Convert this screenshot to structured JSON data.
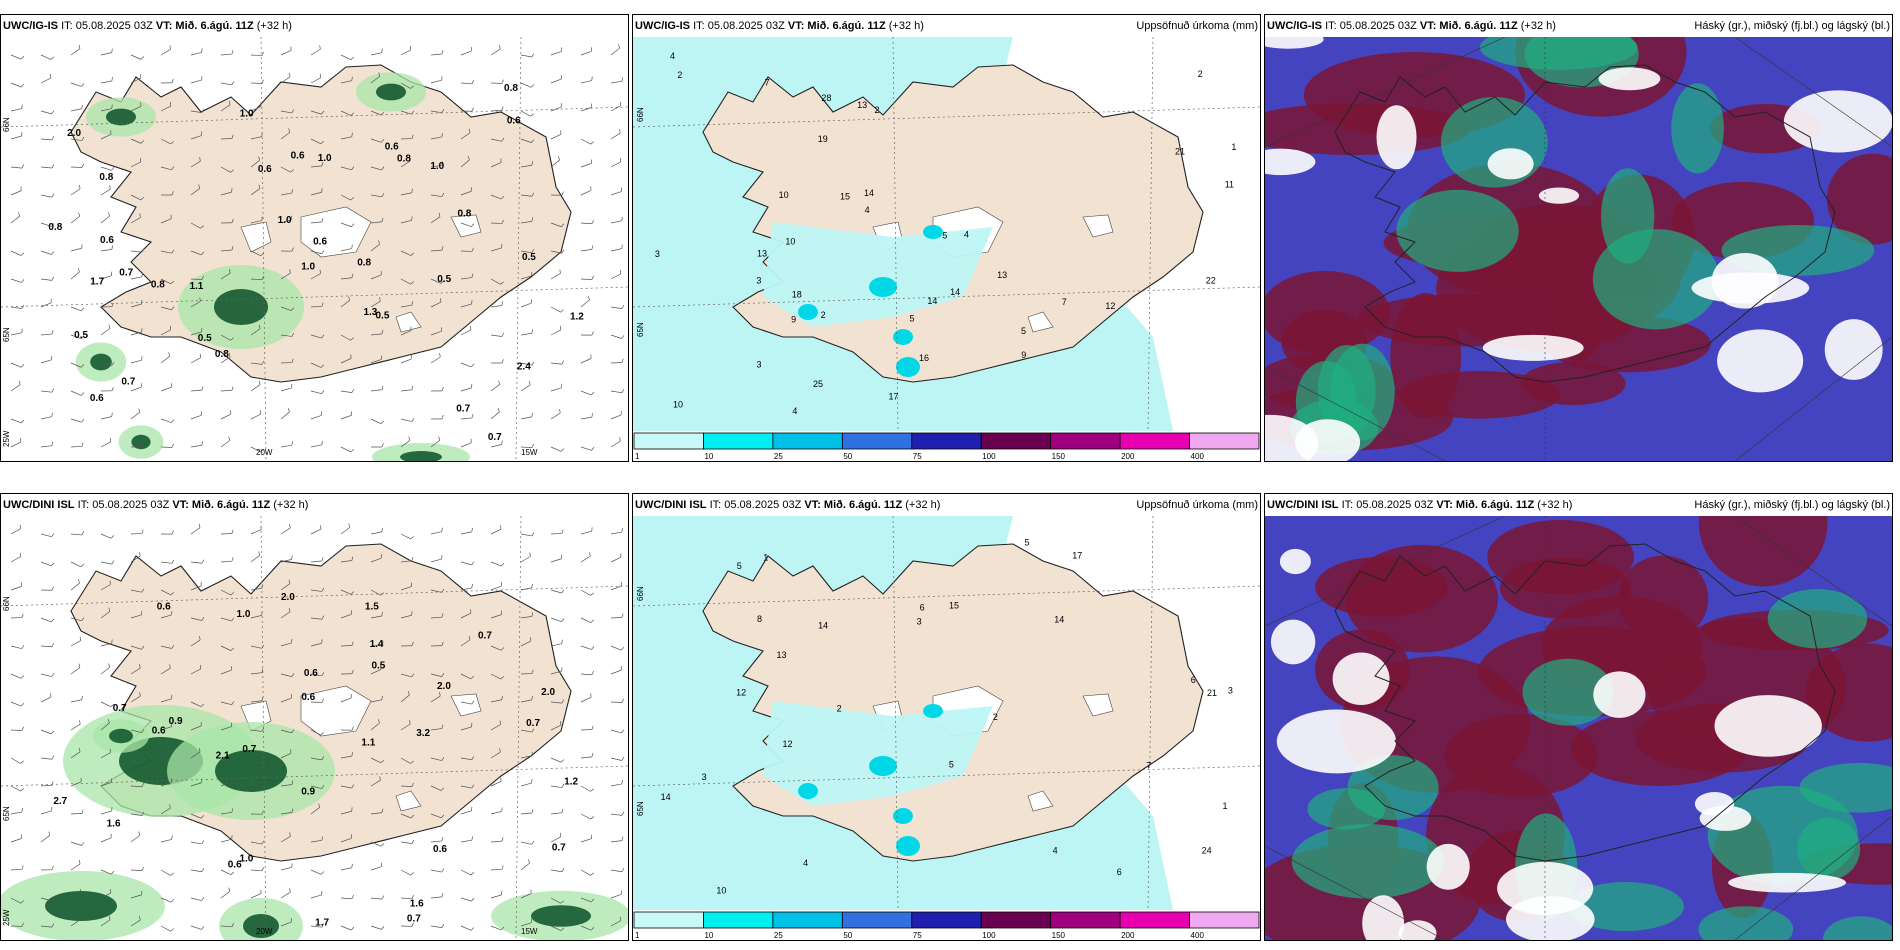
{
  "rows": [
    {
      "wind": {
        "model": "UWC/IG-IS",
        "it": "IT: 05.08.2025 03Z",
        "vt_prefix": "VT:",
        "vt": "Mið. 6.ágú. 11Z",
        "lead": "(+32 h)",
        "values": [
          "0.7",
          "0.7",
          "1.3",
          "2.0",
          "2.4",
          "0.8",
          "0.7",
          "1.1",
          "1.0",
          "0.6",
          "0.8",
          "0.7",
          "0.8",
          "1.0",
          "0.8",
          "0.5",
          "0.5",
          "0.6",
          "0.8",
          "0.6",
          "0.8",
          "1.0",
          "0.8",
          "1.2",
          "0.5",
          "0.6",
          "0.8",
          "1.0",
          "1.0",
          "0.6",
          "0.5",
          "1.7",
          "0.5",
          "0.6",
          "0.6"
        ]
      },
      "precip": {
        "model": "UWC/IG-IS",
        "it": "IT: 05.08.2025 03Z",
        "vt_prefix": "VT:",
        "vt": "Mið. 6.ágú. 11Z",
        "lead": "(+32 h)",
        "title": "Uppsöfnuð úrkoma (mm)",
        "values": [
          "2",
          "4",
          "3",
          "2",
          "1",
          "5",
          "2",
          "2",
          "10",
          "7",
          "9",
          "4",
          "4",
          "3",
          "14",
          "15",
          "5",
          "3",
          "19",
          "14",
          "11",
          "16",
          "25",
          "10",
          "13",
          "14",
          "18",
          "12",
          "17",
          "13",
          "13",
          "28",
          "21",
          "22",
          "5",
          "10",
          "7",
          "4",
          "9"
        ]
      },
      "cloud": {
        "model": "UWC/IG-IS",
        "it": "IT: 05.08.2025 03Z",
        "vt_prefix": "VT:",
        "vt": "Mið. 6.ágú. 11Z",
        "lead": "(+32 h)",
        "title": "Háský (gr.), miðský (fj.bl.) og lágský (bl.)"
      }
    },
    {
      "wind": {
        "model": "UWC/DINI ISL",
        "it": "IT: 05.08.2025 03Z",
        "vt_prefix": "VT:",
        "vt": "Mið. 6.ágú. 11Z",
        "lead": "(+32 h)",
        "values": [
          "0.6",
          "0.6",
          "0.7",
          "2.0",
          "2.1",
          "3.2",
          "1.4",
          "0.7",
          "0.6",
          "0.6",
          "1.2",
          "1.1",
          "0.5",
          "2.0",
          "1.0",
          "1.5",
          "0.7",
          "1.6",
          "2.7",
          "1.0",
          "0.6",
          "0.6",
          "0.9",
          "0.7",
          "1.7",
          "0.7",
          "0.7",
          "0.9",
          "1.6",
          "2.0"
        ]
      },
      "precip": {
        "model": "UWC/DINI ISL",
        "it": "IT: 05.08.2025 03Z",
        "vt_prefix": "VT:",
        "vt": "Mið. 6.ágú. 11Z",
        "lead": "(+32 h)",
        "title": "Uppsöfnuð úrkoma (mm)",
        "values": [
          "6",
          "5",
          "1",
          "3",
          "4",
          "17",
          "14",
          "2",
          "3",
          "14",
          "6",
          "5",
          "15",
          "13",
          "12",
          "10",
          "8",
          "6",
          "12",
          "14",
          "21",
          "24",
          "3",
          "5",
          "7",
          "4",
          "2",
          "1"
        ]
      },
      "cloud": {
        "model": "UWC/DINI ISL",
        "it": "IT: 05.08.2025 03Z",
        "vt_prefix": "VT:",
        "vt": "Mið. 6.ágú. 11Z",
        "lead": "(+32 h)",
        "title": "Háský (gr.), miðský (fj.bl.) og lágský (bl.)"
      }
    }
  ],
  "axis_labels": {
    "lon_20": "20W",
    "lon_15": "15W",
    "lon_25": "25W",
    "lat_65": "65N",
    "lat_66": "66N"
  },
  "colorbar": {
    "ticks": [
      "1",
      "10",
      "25",
      "50",
      "75",
      "100",
      "150",
      "200",
      "400"
    ],
    "colors": [
      "#c8f8f8",
      "#00eef0",
      "#00c0e8",
      "#3070e0",
      "#2020b0",
      "#6a0050",
      "#a00080",
      "#e800b0",
      "#f0a8f0"
    ]
  },
  "colors": {
    "land": "#f2e2d2",
    "sea": "#ffffff",
    "precip_light": "#bdf5f5",
    "green_light": "#a8e6a8",
    "green_dark": "#0a5028",
    "cloud_high": "#1fae80",
    "cloud_mid": "#7a1535",
    "cloud_low": "#4444c0"
  }
}
